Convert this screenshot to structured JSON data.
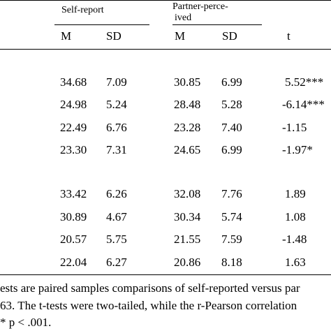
{
  "header": {
    "group_self": "Self-report",
    "group_partner_line1": "Partner-perce-",
    "group_partner_line2": "ived",
    "col_m1": "M",
    "col_sd1": "SD",
    "col_m2": "M",
    "col_sd2": "SD",
    "col_t": "t"
  },
  "rows": [
    {
      "m1": "34.68",
      "sd1": "7.09",
      "m2": "30.85",
      "sd2": "6.99",
      "t": "5.52***"
    },
    {
      "m1": "24.98",
      "sd1": "5.24",
      "m2": "28.48",
      "sd2": "5.28",
      "t": "-6.14***"
    },
    {
      "m1": "22.49",
      "sd1": "6.76",
      "m2": "23.28",
      "sd2": "7.40",
      "t": "-1.15"
    },
    {
      "m1": "23.30",
      "sd1": "7.31",
      "m2": "24.65",
      "sd2": "6.99",
      "t": "-1.97*"
    },
    {
      "m1": "33.42",
      "sd1": "6.26",
      "m2": "32.08",
      "sd2": "7.76",
      "t": "1.89"
    },
    {
      "m1": "30.89",
      "sd1": "4.67",
      "m2": "30.34",
      "sd2": "5.74",
      "t": "1.08"
    },
    {
      "m1": "20.57",
      "sd1": "5.75",
      "m2": "21.55",
      "sd2": "7.59",
      "t": "-1.48"
    },
    {
      "m1": "22.04",
      "sd1": "6.27",
      "m2": "20.86",
      "sd2": "8.18",
      "t": "1.63"
    }
  ],
  "notes": {
    "line1": "ests are paired samples comparisons of self-reported versus par",
    "line2": "63. The t-tests were two-tailed, while the r-Pearson correlation",
    "line3": "* p < .001."
  }
}
